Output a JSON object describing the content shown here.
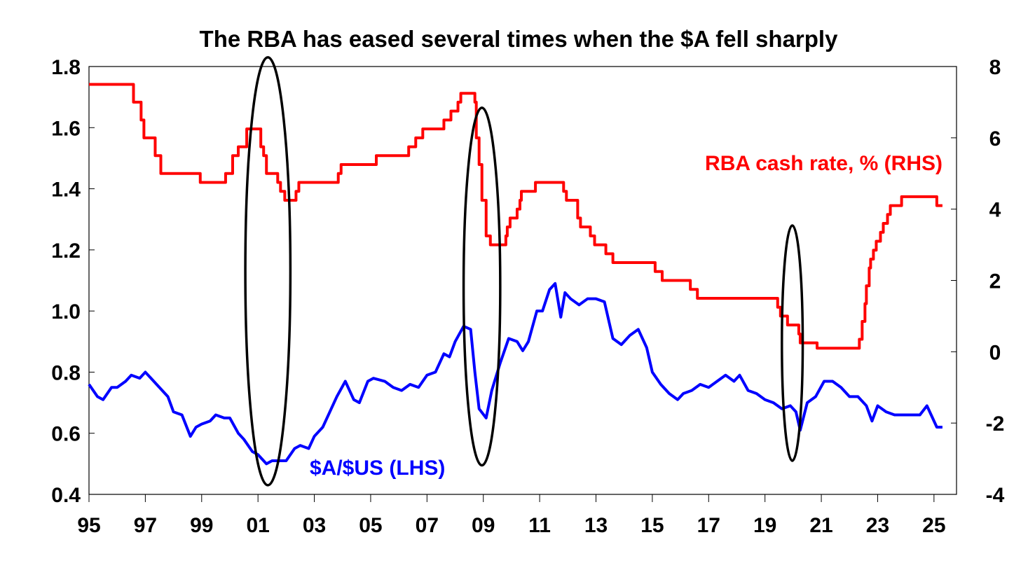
{
  "chart_data": {
    "type": "line",
    "title": "The RBA has eased several times when the $A fell sharply",
    "x_ticks": [
      "95",
      "97",
      "99",
      "01",
      "03",
      "05",
      "07",
      "09",
      "11",
      "13",
      "15",
      "17",
      "19",
      "21",
      "23",
      "25"
    ],
    "x_tick_values": [
      1995,
      1997,
      1999,
      2001,
      2003,
      2005,
      2007,
      2009,
      2011,
      2013,
      2015,
      2017,
      2019,
      2021,
      2023,
      2025
    ],
    "xlim": [
      1995,
      2025.8
    ],
    "y_left": {
      "ylim": [
        0.4,
        1.8
      ],
      "ticks": [
        "0.4",
        "0.6",
        "0.8",
        "1.0",
        "1.2",
        "1.4",
        "1.6",
        "1.8"
      ],
      "tick_values": [
        0.4,
        0.6,
        0.8,
        1.0,
        1.2,
        1.4,
        1.6,
        1.8
      ]
    },
    "y_right": {
      "ylim": [
        -4,
        8
      ],
      "ticks": [
        "-4",
        "-2",
        "0",
        "2",
        "4",
        "6",
        "8"
      ],
      "tick_values": [
        -4,
        -2,
        0,
        2,
        4,
        6,
        8
      ]
    },
    "series": [
      {
        "name": "RBA cash rate, % (RHS)",
        "axis": "right",
        "color": "#ff0000",
        "step": true,
        "x": [
          1995.0,
          1996.58,
          1996.85,
          1996.95,
          1997.35,
          1997.55,
          1998.95,
          1999.85,
          2000.1,
          2000.3,
          2000.6,
          2001.1,
          2001.2,
          2001.3,
          2001.7,
          2001.8,
          2001.95,
          2002.35,
          2002.45,
          2003.85,
          2003.95,
          2005.2,
          2006.35,
          2006.6,
          2006.85,
          2007.6,
          2007.85,
          2008.1,
          2008.2,
          2008.7,
          2008.75,
          2008.85,
          2008.95,
          2009.1,
          2009.25,
          2009.8,
          2009.85,
          2009.95,
          2010.2,
          2010.3,
          2010.35,
          2010.85,
          2011.85,
          2011.95,
          2012.35,
          2012.45,
          2012.8,
          2012.95,
          2013.35,
          2013.6,
          2015.1,
          2015.35,
          2016.35,
          2016.6,
          2019.45,
          2019.55,
          2019.8,
          2020.2,
          2020.25,
          2020.85,
          2022.35,
          2022.45,
          2022.55,
          2022.6,
          2022.7,
          2022.75,
          2022.85,
          2022.95,
          2023.1,
          2023.2,
          2023.35,
          2023.45,
          2023.85,
          2025.1,
          2025.3
        ],
        "y": [
          7.5,
          7.0,
          6.5,
          6.0,
          5.5,
          5.0,
          4.75,
          5.0,
          5.5,
          5.75,
          6.25,
          5.75,
          5.5,
          5.0,
          4.75,
          4.5,
          4.25,
          4.5,
          4.75,
          5.0,
          5.25,
          5.5,
          5.75,
          6.0,
          6.25,
          6.5,
          6.75,
          7.0,
          7.25,
          7.0,
          6.0,
          5.25,
          4.25,
          3.25,
          3.0,
          3.25,
          3.5,
          3.75,
          4.0,
          4.25,
          4.5,
          4.75,
          4.5,
          4.25,
          3.75,
          3.5,
          3.25,
          3.0,
          2.75,
          2.5,
          2.25,
          2.0,
          1.75,
          1.5,
          1.25,
          1.0,
          0.75,
          0.5,
          0.25,
          0.1,
          0.35,
          0.85,
          1.35,
          1.85,
          2.35,
          2.6,
          2.85,
          3.1,
          3.35,
          3.6,
          3.85,
          4.1,
          4.35,
          4.1,
          4.1
        ]
      },
      {
        "name": "$A/$US (LHS)",
        "axis": "left",
        "color": "#0000ff",
        "step": false,
        "x": [
          1995.0,
          1995.3,
          1995.5,
          1995.8,
          1996.0,
          1996.3,
          1996.5,
          1996.8,
          1997.0,
          1997.2,
          1997.5,
          1997.8,
          1998.0,
          1998.3,
          1998.6,
          1998.8,
          1999.0,
          1999.3,
          1999.5,
          1999.8,
          2000.0,
          2000.3,
          2000.5,
          2000.8,
          2001.0,
          2001.3,
          2001.5,
          2001.8,
          2002.0,
          2002.3,
          2002.5,
          2002.8,
          2003.0,
          2003.3,
          2003.5,
          2003.8,
          2004.1,
          2004.4,
          2004.6,
          2004.9,
          2005.1,
          2005.5,
          2005.8,
          2006.1,
          2006.4,
          2006.7,
          2007.0,
          2007.3,
          2007.6,
          2007.8,
          2008.0,
          2008.3,
          2008.55,
          2008.7,
          2008.85,
          2009.1,
          2009.3,
          2009.6,
          2009.9,
          2010.2,
          2010.4,
          2010.6,
          2010.9,
          2011.1,
          2011.35,
          2011.55,
          2011.75,
          2011.9,
          2012.1,
          2012.4,
          2012.7,
          2013.0,
          2013.3,
          2013.6,
          2013.9,
          2014.2,
          2014.5,
          2014.8,
          2015.0,
          2015.3,
          2015.6,
          2015.9,
          2016.1,
          2016.4,
          2016.7,
          2017.0,
          2017.3,
          2017.6,
          2017.9,
          2018.1,
          2018.4,
          2018.7,
          2019.0,
          2019.3,
          2019.6,
          2019.9,
          2020.1,
          2020.25,
          2020.5,
          2020.8,
          2021.1,
          2021.4,
          2021.7,
          2022.0,
          2022.3,
          2022.6,
          2022.8,
          2023.0,
          2023.3,
          2023.6,
          2023.9,
          2024.2,
          2024.5,
          2024.75,
          2024.95,
          2025.1,
          2025.3
        ],
        "y": [
          0.76,
          0.72,
          0.71,
          0.75,
          0.75,
          0.77,
          0.79,
          0.78,
          0.8,
          0.78,
          0.75,
          0.72,
          0.67,
          0.66,
          0.59,
          0.62,
          0.63,
          0.64,
          0.66,
          0.65,
          0.65,
          0.6,
          0.58,
          0.54,
          0.53,
          0.5,
          0.51,
          0.51,
          0.51,
          0.55,
          0.56,
          0.55,
          0.59,
          0.62,
          0.66,
          0.72,
          0.77,
          0.71,
          0.7,
          0.77,
          0.78,
          0.77,
          0.75,
          0.74,
          0.76,
          0.75,
          0.79,
          0.8,
          0.86,
          0.85,
          0.9,
          0.95,
          0.94,
          0.8,
          0.68,
          0.65,
          0.74,
          0.83,
          0.91,
          0.9,
          0.87,
          0.9,
          1.0,
          1.0,
          1.07,
          1.09,
          0.98,
          1.06,
          1.04,
          1.02,
          1.04,
          1.04,
          1.03,
          0.91,
          0.89,
          0.92,
          0.94,
          0.88,
          0.8,
          0.76,
          0.73,
          0.71,
          0.73,
          0.74,
          0.76,
          0.75,
          0.77,
          0.79,
          0.77,
          0.79,
          0.74,
          0.73,
          0.71,
          0.7,
          0.68,
          0.69,
          0.67,
          0.61,
          0.7,
          0.72,
          0.77,
          0.77,
          0.75,
          0.72,
          0.72,
          0.69,
          0.64,
          0.69,
          0.67,
          0.66,
          0.66,
          0.66,
          0.66,
          0.69,
          0.65,
          0.62,
          0.62
        ]
      }
    ],
    "annotations": {
      "cash_label": "RBA cash rate, % (RHS)",
      "aud_label": "$A/$US (LHS)",
      "ellipses": [
        {
          "cx_year": 2001.35,
          "cy_left": 1.13,
          "rx_years": 0.8,
          "ry_left": 0.7
        },
        {
          "cx_year": 2008.95,
          "cy_left": 1.08,
          "rx_years": 0.65,
          "ry_left": 0.585
        },
        {
          "cx_year": 2019.97,
          "cy_left": 0.895,
          "rx_years": 0.37,
          "ry_left": 0.385
        }
      ]
    },
    "grid": false
  }
}
